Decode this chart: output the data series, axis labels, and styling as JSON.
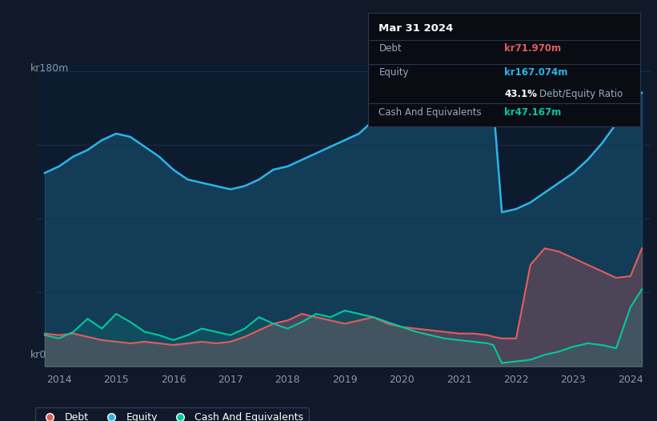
{
  "background_color": "#111827",
  "plot_bg_color": "#0d1b2e",
  "ylabel_top": "kr180m",
  "ylabel_bottom": "kr0",
  "x_ticks": [
    2014,
    2015,
    2016,
    2017,
    2018,
    2019,
    2020,
    2021,
    2022,
    2023,
    2024
  ],
  "equity_color": "#29b5e8",
  "debt_color": "#e05c5c",
  "cash_color": "#00c9a0",
  "tooltip": {
    "date": "Mar 31 2024",
    "debt_label": "Debt",
    "debt_value": "kr71.970m",
    "equity_label": "Equity",
    "equity_value": "kr167.074m",
    "ratio_value": "43.1%",
    "ratio_label": "Debt/Equity Ratio",
    "cash_label": "Cash And Equivalents",
    "cash_value": "kr47.167m"
  },
  "legend_labels": [
    "Debt",
    "Equity",
    "Cash And Equivalents"
  ],
  "years": [
    2013.75,
    2014.0,
    2014.25,
    2014.5,
    2014.75,
    2015.0,
    2015.25,
    2015.5,
    2015.75,
    2016.0,
    2016.25,
    2016.5,
    2016.75,
    2017.0,
    2017.25,
    2017.5,
    2017.75,
    2018.0,
    2018.25,
    2018.5,
    2018.75,
    2019.0,
    2019.25,
    2019.5,
    2019.75,
    2020.0,
    2020.25,
    2020.5,
    2020.75,
    2021.0,
    2021.25,
    2021.5,
    2021.6,
    2021.75,
    2022.0,
    2022.25,
    2022.5,
    2022.75,
    2023.0,
    2023.25,
    2023.5,
    2023.75,
    2024.0,
    2024.2
  ],
  "equity": [
    118,
    122,
    128,
    132,
    138,
    142,
    140,
    134,
    128,
    120,
    114,
    112,
    110,
    108,
    110,
    114,
    120,
    122,
    126,
    130,
    134,
    138,
    142,
    150,
    157,
    160,
    163,
    166,
    161,
    166,
    170,
    168,
    160,
    94,
    96,
    100,
    106,
    112,
    118,
    126,
    136,
    148,
    160,
    167
  ],
  "debt": [
    20,
    19,
    20,
    18,
    16,
    15,
    14,
    15,
    14,
    13,
    14,
    15,
    14,
    15,
    18,
    22,
    26,
    28,
    32,
    30,
    28,
    26,
    28,
    30,
    26,
    24,
    23,
    22,
    21,
    20,
    20,
    19,
    18,
    17,
    17,
    62,
    72,
    70,
    66,
    62,
    58,
    54,
    55,
    72
  ],
  "cash": [
    19,
    17,
    21,
    29,
    23,
    32,
    27,
    21,
    19,
    16,
    19,
    23,
    21,
    19,
    23,
    30,
    26,
    23,
    27,
    32,
    30,
    34,
    32,
    30,
    27,
    24,
    21,
    19,
    17,
    16,
    15,
    14,
    13,
    2,
    3,
    4,
    7,
    9,
    12,
    14,
    13,
    11,
    36,
    47
  ],
  "ymax": 185,
  "xmin": 2013.6,
  "xmax": 2024.35
}
